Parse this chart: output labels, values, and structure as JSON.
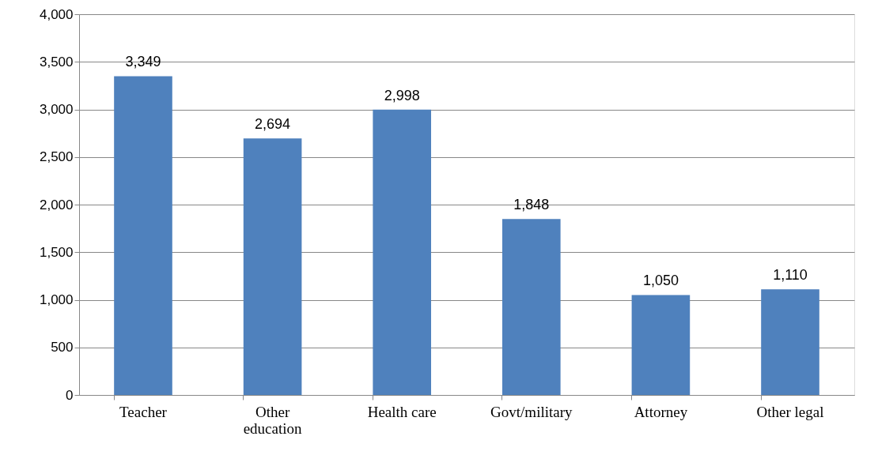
{
  "chart_data": {
    "type": "bar",
    "categories": [
      "Teacher",
      "Other education",
      "Health care",
      "Govt/military",
      "Attorney",
      "Other legal"
    ],
    "values": [
      3349,
      2694,
      2998,
      1848,
      1050,
      1110
    ],
    "color": "#4f81bd",
    "value_labels": [
      "3,349",
      "2,694",
      "2,998",
      "1,848",
      "1,050",
      "1,110"
    ],
    "ylim": [
      0,
      4000
    ],
    "yticks": [
      0,
      {
        "value": 500,
        "label": "500"
      },
      {
        "value": 1000,
        "label": "1,000"
      },
      {
        "value": 1500,
        "label": "1,500"
      },
      {
        "value": 2000,
        "label": "2,000"
      },
      {
        "value": 2500,
        "label": "2,500"
      },
      {
        "value": 3000,
        "label": "3,000"
      },
      {
        "value": 3500,
        "label": "3,500"
      },
      {
        "value": 4000,
        "label": "4,000"
      }
    ],
    "grid": "y"
  }
}
